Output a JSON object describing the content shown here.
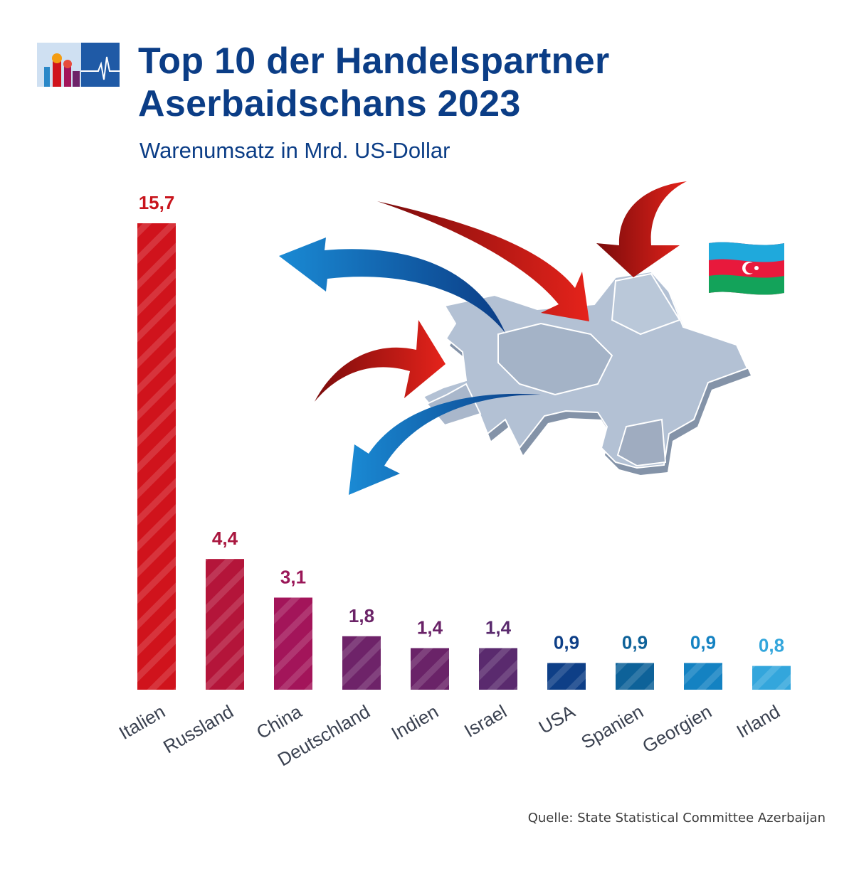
{
  "header": {
    "title_line1": "Top 10 der Handelspartner",
    "title_line2": "Aserbaidschans 2023",
    "subtitle": "Warenumsatz in Mrd. US-Dollar"
  },
  "footer": {
    "source": "Quelle: State Statistical Committee Azerbaijan"
  },
  "chart_data": {
    "type": "bar",
    "title": "Top 10 der Handelspartner Aserbaidschans 2023",
    "subtitle": "Warenumsatz in Mrd. US-Dollar",
    "categories": [
      "Italien",
      "Russland",
      "China",
      "Deutschland",
      "Indien",
      "Israel",
      "USA",
      "Spanien",
      "Georgien",
      "Irland"
    ],
    "values": [
      15.7,
      4.4,
      3.1,
      1.8,
      1.4,
      1.4,
      0.9,
      0.9,
      0.9,
      0.8
    ],
    "value_labels": [
      "15,7",
      "4,4",
      "3,1",
      "1,8",
      "1,4",
      "1,4",
      "0,9",
      "0,9",
      "0,9",
      "0,8"
    ],
    "colors": [
      "#d0131c",
      "#b4153a",
      "#a3155a",
      "#6e2369",
      "#6a2368",
      "#5a2a6e",
      "#0e3f87",
      "#0e6299",
      "#1482c2",
      "#33a6dc"
    ],
    "label_colors": [
      "#c8141c",
      "#a9163e",
      "#9a1758",
      "#6b2367",
      "#6a2368",
      "#5a2a6e",
      "#0e3f87",
      "#0e6299",
      "#1482c2",
      "#33a6dc"
    ],
    "ylim": [
      0,
      15.7
    ],
    "grid": false,
    "legend": "none",
    "decorations": [
      "azerbaijan-map",
      "trade-arrows",
      "azerbaijan-flag",
      "logo"
    ]
  }
}
